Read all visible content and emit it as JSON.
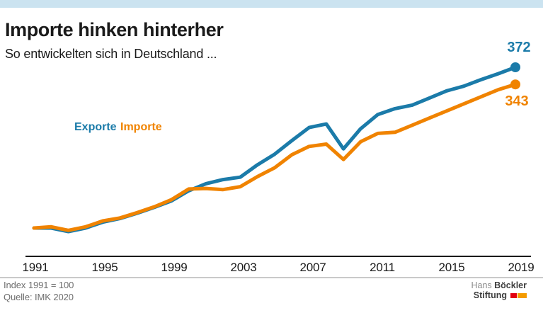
{
  "header": {
    "title": "Importe hinken hinterher",
    "subtitle": "So entwickelten sich in Deutschland ..."
  },
  "colors": {
    "topbar": "#cbe3f0",
    "exporte_blue": "#1b7ba9",
    "importe_orange": "#f08300",
    "axis": "#1a1a1a",
    "footnote_gray": "#6e6e6e",
    "logo_red": "#e2000f",
    "logo_orange": "#f49b00"
  },
  "legend": [
    {
      "label": "Exporte",
      "color": "#1b7ba9"
    },
    {
      "label": "Importe",
      "color": "#f08300"
    }
  ],
  "chart_data": {
    "type": "line",
    "title": "Importe hinken hinterher",
    "subtitle": "So entwickelten sich in Deutschland ...",
    "xlabel": "",
    "ylabel": "Index 1991 = 100",
    "x": [
      1991,
      1992,
      1993,
      1994,
      1995,
      1996,
      1997,
      1998,
      1999,
      2000,
      2001,
      2002,
      2003,
      2004,
      2005,
      2006,
      2007,
      2008,
      2009,
      2010,
      2011,
      2012,
      2013,
      2014,
      2015,
      2016,
      2017,
      2018,
      2019
    ],
    "x_ticks": [
      "1991",
      "1995",
      "1999",
      "2003",
      "2007",
      "2011",
      "2015",
      "2019"
    ],
    "ylim": [
      85,
      400
    ],
    "grid": false,
    "legend_position": "upper-left-inside",
    "series": [
      {
        "name": "Exporte",
        "color": "#1b7ba9",
        "end_label": "372",
        "values": [
          100,
          100,
          94,
          100,
          110,
          116,
          125,
          135,
          146,
          163,
          175,
          182,
          186,
          207,
          225,
          248,
          270,
          276,
          234,
          268,
          292,
          302,
          308,
          320,
          332,
          340,
          351,
          361,
          372
        ]
      },
      {
        "name": "Importe",
        "color": "#f08300",
        "end_label": "343",
        "values": [
          100,
          102,
          96,
          102,
          112,
          117,
          126,
          136,
          148,
          166,
          167,
          165,
          170,
          187,
          202,
          224,
          238,
          242,
          216,
          246,
          260,
          262,
          274,
          286,
          298,
          310,
          322,
          334,
          343
        ]
      }
    ]
  },
  "footer": {
    "note_line1": "Index 1991 = 100",
    "note_line2": "Quelle: IMK 2020",
    "logo": {
      "line1_regular": "Hans",
      "line1_bold": "Böckler",
      "line2_bold": "Stiftung"
    }
  }
}
